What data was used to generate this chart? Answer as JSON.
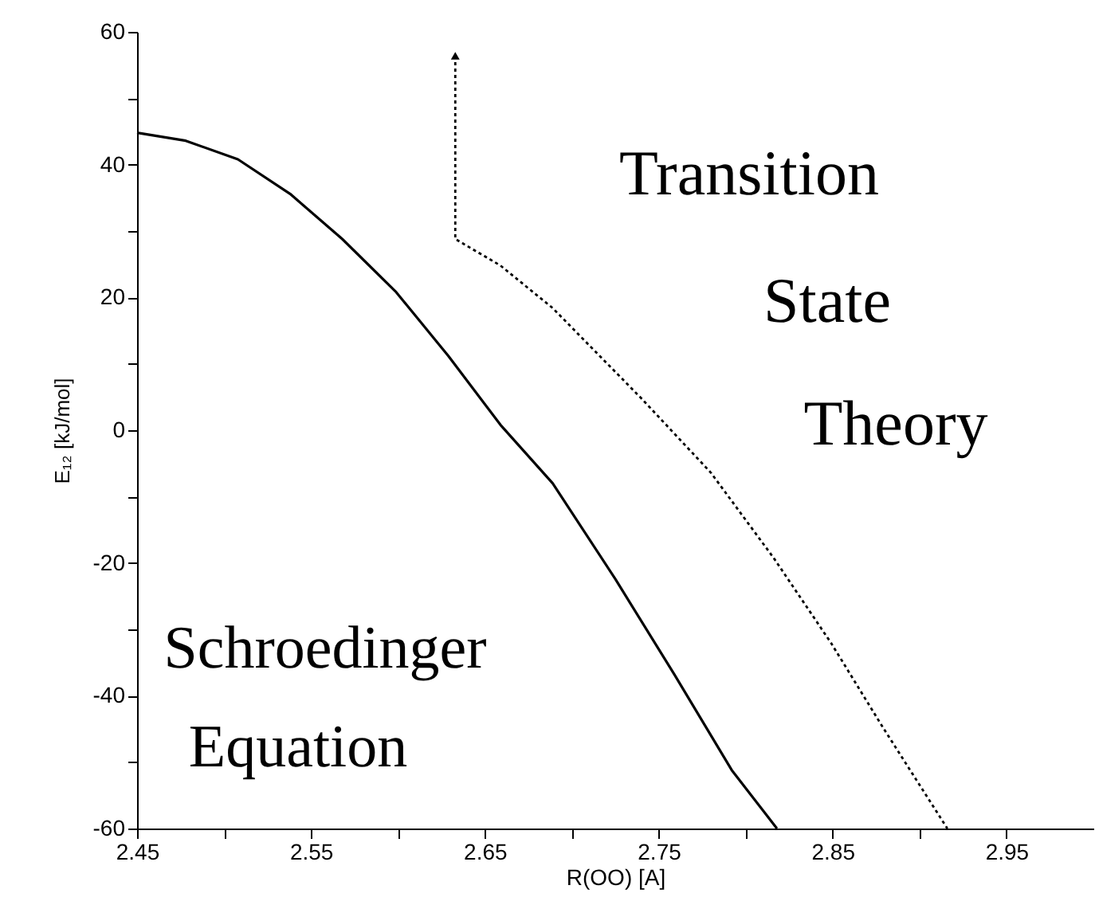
{
  "chart_data": {
    "type": "line",
    "xlabel": "R(OO)  [A]",
    "ylabel": "E₁₂  [kJ/mol]",
    "xlim": [
      2.45,
      3.0
    ],
    "ylim": [
      -60,
      60
    ],
    "xticks": [
      2.45,
      {
        "value": 2.5,
        "label": null
      },
      2.55,
      {
        "value": 2.6,
        "label": null
      },
      2.65,
      {
        "value": 2.7,
        "label": null
      },
      2.75,
      {
        "value": 2.8,
        "label": null
      },
      2.85,
      {
        "value": 2.9,
        "label": null
      },
      2.95
    ],
    "yticks": [
      -60,
      {
        "value": -50,
        "label": null
      },
      -40,
      {
        "value": -30,
        "label": null
      },
      -20,
      {
        "value": -10,
        "label": null
      },
      0,
      {
        "value": 10,
        "label": null
      },
      20,
      {
        "value": 30,
        "label": null
      },
      40,
      {
        "value": 50,
        "label": null
      },
      60
    ],
    "marker": "none",
    "series": [
      {
        "color": "#000000",
        "line_style": "solid",
        "x": [
          2.45,
          2.478,
          2.508,
          2.538,
          2.568,
          2.599,
          2.629,
          2.659,
          2.689,
          2.725,
          2.759,
          2.792,
          2.818
        ],
        "values": [
          44.8,
          43.6,
          40.8,
          35.6,
          28.8,
          20.8,
          11.2,
          0.8,
          -8.0,
          -22.4,
          -36.8,
          -51.2,
          -60
        ]
      },
      {
        "color": "#000000",
        "line_style": "dotted",
        "x": [
          2.633,
          2.633,
          2.659,
          2.689,
          2.725,
          2.74,
          2.78,
          2.816,
          2.849,
          2.879,
          2.916
        ],
        "values": [
          56.4,
          28.8,
          24.8,
          18.4,
          8.8,
          4.8,
          -6.4,
          -19.2,
          -32,
          -44.8,
          -60
        ]
      }
    ],
    "annotations": [
      "Transition",
      "State",
      "Theory",
      "Schroedinger",
      "Equation"
    ]
  }
}
